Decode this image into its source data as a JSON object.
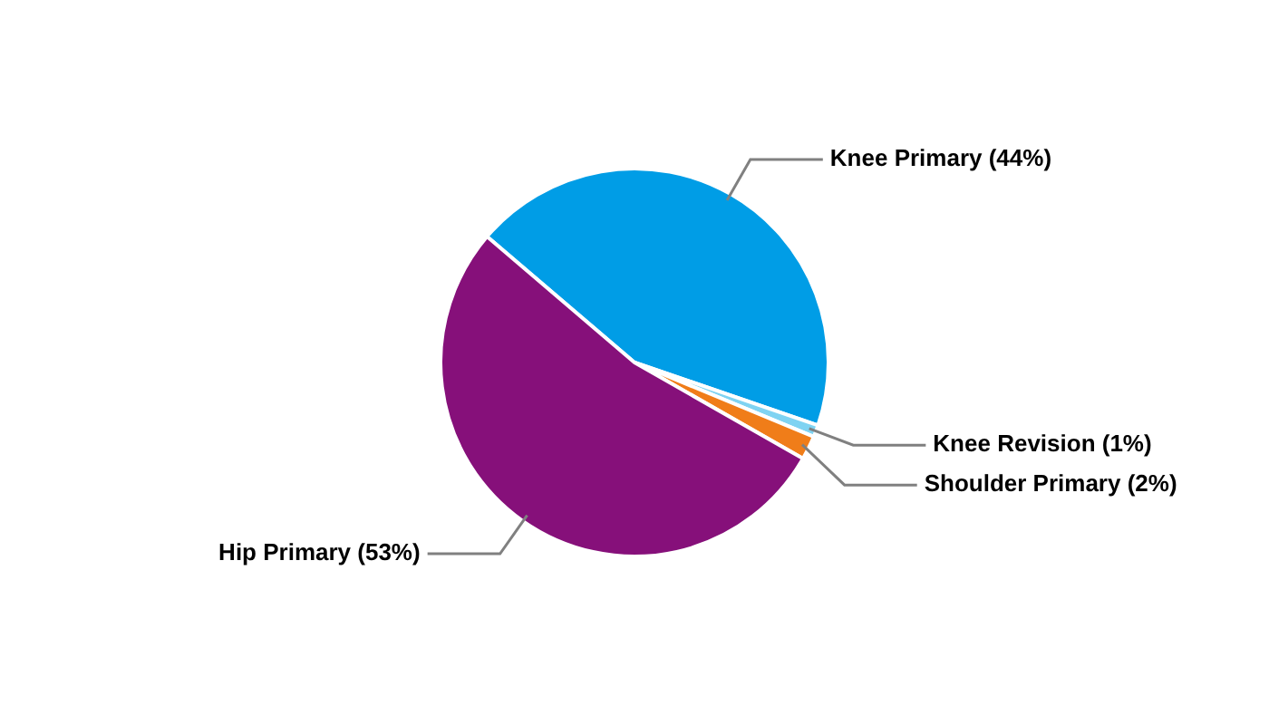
{
  "chart_data": {
    "type": "pie",
    "categories": [
      "Knee Primary",
      "Knee Revision",
      "Shoulder Primary",
      "Hip Primary"
    ],
    "values": [
      44,
      1,
      2,
      53
    ],
    "colors": [
      "#009de6",
      "#7fd3f2",
      "#f07d19",
      "#86107a"
    ],
    "value_labels": [
      "(44%)",
      "(1%)",
      "(2%)",
      "(53%)"
    ],
    "legend": false
  }
}
